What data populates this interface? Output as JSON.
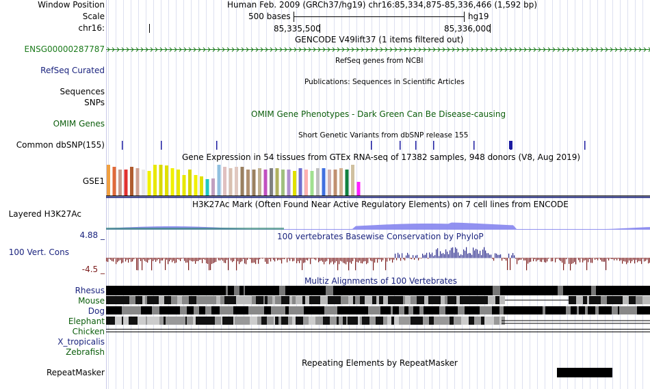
{
  "header": {
    "window_position_label": "Window Position",
    "scale_label": "Scale",
    "chrom_label": "chr16:",
    "title": "Human Feb. 2009 (GRCh37/hg19)   chr16:85,334,875-85,336,466 (1,592 bp)",
    "scale_text": "500 bases",
    "assembly": "hg19",
    "tick1": "85,335,500",
    "tick2": "85,336,000"
  },
  "tracks": {
    "gencode": {
      "title": "GENCODE V49lift37 (1 items filtered out)",
      "label": "ENSG00000287787",
      "color": "#1a7a1a"
    },
    "refseq": {
      "title": "RefSeq genes from NCBI",
      "label": "RefSeq Curated"
    },
    "publications": {
      "title": "Publications: Sequences in Scientific Articles",
      "label1": "Sequences",
      "label2": "SNPs"
    },
    "omim": {
      "title": "OMIM Gene Phenotypes - Dark Green Can Be Disease-causing",
      "label": "OMIM Genes"
    },
    "dbsnp": {
      "title": "Short Genetic Variants from dbSNP release 155",
      "label": "Common dbSNP(155)"
    },
    "gtex": {
      "title": "Gene Expression in 54 tissues from GTEx RNA-seq of 17382 samples, 948 donors (V8, Aug 2019)",
      "label": "GSE1"
    },
    "h3k27ac": {
      "title": "H3K27Ac Mark (Often Found Near Active Regulatory Elements) on 7 cell lines from ENCODE",
      "label": "Layered H3K27Ac"
    },
    "cons": {
      "title": "100 vertebrates Basewise Conservation by PhyloP",
      "label": "100 Vert. Cons",
      "max": "4.88 _",
      "min": "-4.5 _"
    },
    "multiz": {
      "title": "Multiz Alignments of 100 Vertebrates",
      "species": [
        "Rhesus",
        "Mouse",
        "Dog",
        "Elephant",
        "Chicken",
        "X_tropicalis",
        "Zebrafish"
      ]
    },
    "rmsk": {
      "title": "Repeating Elements by RepeatMasker",
      "label": "RepeatMasker"
    }
  },
  "colors": {
    "blue": "#1a237e",
    "green": "#0b5d0b",
    "maroon": "#7a1a1a",
    "cons_pos": "#2b2b8c",
    "cons_neg": "#7a1a1a",
    "h3k": "#8585ee"
  },
  "gtex_colors": [
    "#f0a040",
    "#e06a3a",
    "#c89a8a",
    "#e03030",
    "#b05c2f",
    "#d0a090",
    "#e8e8e8",
    "#f0f000",
    "#e8e800",
    "#d8d800",
    "#e0e000",
    "#f0f000",
    "#e8e800",
    "#e8e800",
    "#d8d800",
    "#f0f000",
    "#e0e000",
    "#20c8c0",
    "#c0a0c0",
    "#90c0e0",
    "#e0c0c0",
    "#d8c0b0",
    "#e0c8c0",
    "#9a8060",
    "#b09070",
    "#9a8060",
    "#c0b090",
    "#c050c0",
    "#808080",
    "#b0b060",
    "#a0c080",
    "#b090d0",
    "#e0e000",
    "#7070d0",
    "#ffb0b0",
    "#a0e090",
    "#c0c0c0",
    "#4070e0",
    "#d0b0b0",
    "#c09070",
    "#d0b090",
    "#108040",
    "#d0c0a0",
    "#ff20ff"
  ],
  "species_colors": [
    "#1a237e",
    "#1a7a1a",
    "#1a237e",
    "#1a7a1a",
    "#1a7a1a",
    "#1a237e",
    "#1a7a1a"
  ]
}
